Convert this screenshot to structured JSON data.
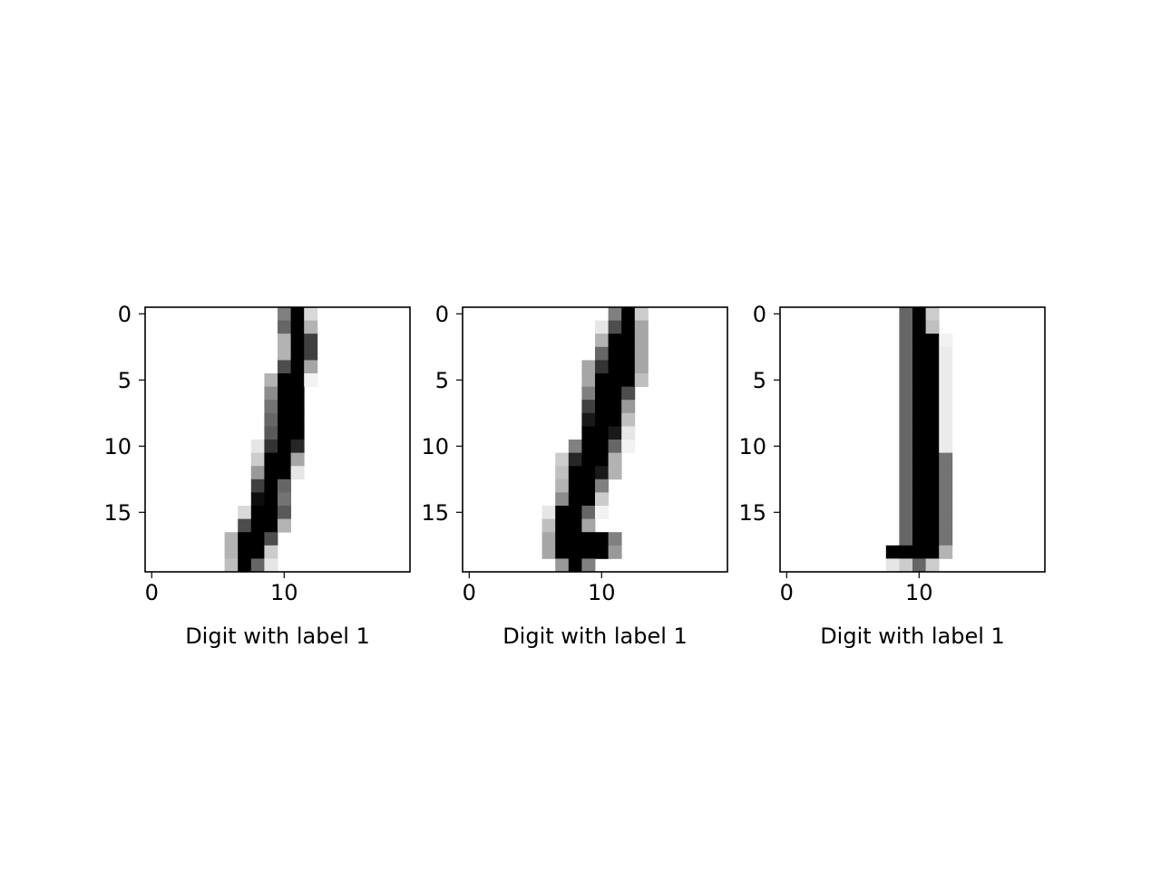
{
  "chart_data": [
    {
      "type": "heatmap",
      "colormap": "gray_r",
      "xlabel": "Digit with label 1",
      "xticks": [
        0,
        10
      ],
      "yticks": [
        0,
        5,
        10,
        15
      ],
      "xlim": [
        -0.5,
        19.5
      ],
      "ylim": [
        19.5,
        -0.5
      ],
      "grid": false,
      "cells": [
        [
          0,
          10,
          0.5
        ],
        [
          0,
          11,
          1.0
        ],
        [
          0,
          12,
          0.15
        ],
        [
          1,
          10,
          0.6
        ],
        [
          1,
          11,
          1.0
        ],
        [
          1,
          12,
          0.3
        ],
        [
          2,
          10,
          0.3
        ],
        [
          2,
          11,
          1.0
        ],
        [
          2,
          12,
          0.75
        ],
        [
          3,
          10,
          0.3
        ],
        [
          3,
          11,
          1.0
        ],
        [
          3,
          12,
          0.75
        ],
        [
          4,
          10,
          0.7
        ],
        [
          4,
          11,
          1.0
        ],
        [
          4,
          12,
          0.35
        ],
        [
          5,
          9,
          0.3
        ],
        [
          5,
          10,
          1.0
        ],
        [
          5,
          11,
          1.0
        ],
        [
          5,
          12,
          0.05
        ],
        [
          6,
          9,
          0.45
        ],
        [
          6,
          10,
          1.0
        ],
        [
          6,
          11,
          1.0
        ],
        [
          7,
          9,
          0.55
        ],
        [
          7,
          10,
          1.0
        ],
        [
          7,
          11,
          1.0
        ],
        [
          8,
          9,
          0.6
        ],
        [
          8,
          10,
          1.0
        ],
        [
          8,
          11,
          1.0
        ],
        [
          9,
          9,
          0.65
        ],
        [
          9,
          10,
          1.0
        ],
        [
          9,
          11,
          1.0
        ],
        [
          10,
          8,
          0.1
        ],
        [
          10,
          9,
          0.8
        ],
        [
          10,
          10,
          1.0
        ],
        [
          10,
          11,
          0.85
        ],
        [
          11,
          8,
          0.2
        ],
        [
          11,
          9,
          1.0
        ],
        [
          11,
          10,
          1.0
        ],
        [
          11,
          11,
          0.35
        ],
        [
          12,
          8,
          0.4
        ],
        [
          12,
          9,
          1.0
        ],
        [
          12,
          10,
          1.0
        ],
        [
          12,
          11,
          0.1
        ],
        [
          13,
          8,
          0.75
        ],
        [
          13,
          9,
          1.0
        ],
        [
          13,
          10,
          0.6
        ],
        [
          14,
          8,
          0.95
        ],
        [
          14,
          9,
          1.0
        ],
        [
          14,
          10,
          0.55
        ],
        [
          15,
          7,
          0.15
        ],
        [
          15,
          8,
          1.0
        ],
        [
          15,
          9,
          1.0
        ],
        [
          15,
          10,
          0.65
        ],
        [
          16,
          7,
          0.7
        ],
        [
          16,
          8,
          1.0
        ],
        [
          16,
          9,
          1.0
        ],
        [
          16,
          10,
          0.3
        ],
        [
          17,
          6,
          0.3
        ],
        [
          17,
          7,
          1.0
        ],
        [
          17,
          8,
          1.0
        ],
        [
          17,
          9,
          0.7
        ],
        [
          18,
          6,
          0.3
        ],
        [
          18,
          7,
          1.0
        ],
        [
          18,
          8,
          1.0
        ],
        [
          18,
          9,
          0.2
        ],
        [
          19,
          6,
          0.25
        ],
        [
          19,
          7,
          1.0
        ],
        [
          19,
          8,
          0.6
        ],
        [
          19,
          9,
          0.1
        ]
      ]
    },
    {
      "type": "heatmap",
      "colormap": "gray_r",
      "xlabel": "Digit with label 1",
      "xticks": [
        0,
        10
      ],
      "yticks": [
        0,
        5,
        10,
        15
      ],
      "xlim": [
        -0.5,
        19.5
      ],
      "ylim": [
        19.5,
        -0.5
      ],
      "grid": false,
      "cells": [
        [
          0,
          11,
          0.5
        ],
        [
          0,
          12,
          1.0
        ],
        [
          0,
          13,
          0.2
        ],
        [
          1,
          10,
          0.1
        ],
        [
          1,
          11,
          0.7
        ],
        [
          1,
          12,
          1.0
        ],
        [
          1,
          13,
          0.35
        ],
        [
          2,
          10,
          0.3
        ],
        [
          2,
          11,
          1.0
        ],
        [
          2,
          12,
          1.0
        ],
        [
          2,
          13,
          0.35
        ],
        [
          3,
          10,
          0.6
        ],
        [
          3,
          11,
          1.0
        ],
        [
          3,
          12,
          1.0
        ],
        [
          3,
          13,
          0.35
        ],
        [
          4,
          9,
          0.35
        ],
        [
          4,
          10,
          0.8
        ],
        [
          4,
          11,
          1.0
        ],
        [
          4,
          12,
          1.0
        ],
        [
          4,
          13,
          0.35
        ],
        [
          5,
          9,
          0.35
        ],
        [
          5,
          10,
          1.0
        ],
        [
          5,
          11,
          1.0
        ],
        [
          5,
          12,
          1.0
        ],
        [
          5,
          13,
          0.25
        ],
        [
          6,
          9,
          0.5
        ],
        [
          6,
          10,
          1.0
        ],
        [
          6,
          11,
          1.0
        ],
        [
          6,
          12,
          0.7
        ],
        [
          7,
          9,
          0.75
        ],
        [
          7,
          10,
          1.0
        ],
        [
          7,
          11,
          1.0
        ],
        [
          7,
          12,
          0.4
        ],
        [
          8,
          9,
          0.9
        ],
        [
          8,
          10,
          1.0
        ],
        [
          8,
          11,
          1.0
        ],
        [
          8,
          12,
          0.25
        ],
        [
          9,
          9,
          1.0
        ],
        [
          9,
          10,
          1.0
        ],
        [
          9,
          11,
          0.9
        ],
        [
          9,
          12,
          0.1
        ],
        [
          10,
          8,
          0.5
        ],
        [
          10,
          9,
          1.0
        ],
        [
          10,
          10,
          1.0
        ],
        [
          10,
          11,
          0.6
        ],
        [
          10,
          12,
          0.05
        ],
        [
          11,
          7,
          0.2
        ],
        [
          11,
          8,
          0.85
        ],
        [
          11,
          9,
          1.0
        ],
        [
          11,
          10,
          1.0
        ],
        [
          11,
          11,
          0.3
        ],
        [
          12,
          7,
          0.25
        ],
        [
          12,
          8,
          1.0
        ],
        [
          12,
          9,
          1.0
        ],
        [
          12,
          10,
          0.9
        ],
        [
          12,
          11,
          0.3
        ],
        [
          13,
          7,
          0.3
        ],
        [
          13,
          8,
          1.0
        ],
        [
          13,
          9,
          1.0
        ],
        [
          13,
          10,
          0.5
        ],
        [
          14,
          7,
          0.45
        ],
        [
          14,
          8,
          1.0
        ],
        [
          14,
          9,
          1.0
        ],
        [
          14,
          10,
          0.2
        ],
        [
          15,
          6,
          0.1
        ],
        [
          15,
          7,
          1.0
        ],
        [
          15,
          8,
          1.0
        ],
        [
          15,
          9,
          0.6
        ],
        [
          15,
          10,
          0.05
        ],
        [
          16,
          6,
          0.25
        ],
        [
          16,
          7,
          1.0
        ],
        [
          16,
          8,
          1.0
        ],
        [
          16,
          9,
          0.35
        ],
        [
          17,
          6,
          0.35
        ],
        [
          17,
          7,
          1.0
        ],
        [
          17,
          8,
          1.0
        ],
        [
          17,
          9,
          1.0
        ],
        [
          17,
          10,
          1.0
        ],
        [
          17,
          11,
          0.5
        ],
        [
          18,
          6,
          0.35
        ],
        [
          18,
          7,
          1.0
        ],
        [
          18,
          8,
          1.0
        ],
        [
          18,
          9,
          1.0
        ],
        [
          18,
          10,
          1.0
        ],
        [
          18,
          11,
          0.4
        ],
        [
          19,
          7,
          0.4
        ],
        [
          19,
          8,
          1.0
        ],
        [
          19,
          9,
          0.5
        ]
      ]
    },
    {
      "type": "heatmap",
      "colormap": "gray_r",
      "xlabel": "Digit with label 1",
      "xticks": [
        0,
        10
      ],
      "yticks": [
        0,
        5,
        10,
        15
      ],
      "xlim": [
        -0.5,
        19.5
      ],
      "ylim": [
        19.5,
        -0.5
      ],
      "grid": false,
      "cells": [
        [
          0,
          9,
          0.6
        ],
        [
          0,
          10,
          1.0
        ],
        [
          0,
          11,
          0.2
        ],
        [
          1,
          9,
          0.6
        ],
        [
          1,
          10,
          1.0
        ],
        [
          1,
          11,
          0.25
        ],
        [
          2,
          9,
          0.6
        ],
        [
          2,
          10,
          1.0
        ],
        [
          2,
          11,
          1.0
        ],
        [
          2,
          12,
          0.05
        ],
        [
          3,
          9,
          0.6
        ],
        [
          3,
          10,
          1.0
        ],
        [
          3,
          11,
          1.0
        ],
        [
          3,
          12,
          0.08
        ],
        [
          4,
          9,
          0.6
        ],
        [
          4,
          10,
          1.0
        ],
        [
          4,
          11,
          1.0
        ],
        [
          4,
          12,
          0.08
        ],
        [
          5,
          9,
          0.6
        ],
        [
          5,
          10,
          1.0
        ],
        [
          5,
          11,
          1.0
        ],
        [
          5,
          12,
          0.08
        ],
        [
          6,
          9,
          0.6
        ],
        [
          6,
          10,
          1.0
        ],
        [
          6,
          11,
          1.0
        ],
        [
          6,
          12,
          0.08
        ],
        [
          7,
          9,
          0.6
        ],
        [
          7,
          10,
          1.0
        ],
        [
          7,
          11,
          1.0
        ],
        [
          7,
          12,
          0.08
        ],
        [
          8,
          9,
          0.6
        ],
        [
          8,
          10,
          1.0
        ],
        [
          8,
          11,
          1.0
        ],
        [
          8,
          12,
          0.08
        ],
        [
          9,
          9,
          0.6
        ],
        [
          9,
          10,
          1.0
        ],
        [
          9,
          11,
          1.0
        ],
        [
          9,
          12,
          0.08
        ],
        [
          10,
          9,
          0.6
        ],
        [
          10,
          10,
          1.0
        ],
        [
          10,
          11,
          1.0
        ],
        [
          10,
          12,
          0.08
        ],
        [
          11,
          9,
          0.6
        ],
        [
          11,
          10,
          1.0
        ],
        [
          11,
          11,
          1.0
        ],
        [
          11,
          12,
          0.55
        ],
        [
          12,
          9,
          0.6
        ],
        [
          12,
          10,
          1.0
        ],
        [
          12,
          11,
          1.0
        ],
        [
          12,
          12,
          0.55
        ],
        [
          13,
          9,
          0.6
        ],
        [
          13,
          10,
          1.0
        ],
        [
          13,
          11,
          1.0
        ],
        [
          13,
          12,
          0.55
        ],
        [
          14,
          9,
          0.6
        ],
        [
          14,
          10,
          1.0
        ],
        [
          14,
          11,
          1.0
        ],
        [
          14,
          12,
          0.55
        ],
        [
          15,
          9,
          0.6
        ],
        [
          15,
          10,
          1.0
        ],
        [
          15,
          11,
          1.0
        ],
        [
          15,
          12,
          0.55
        ],
        [
          16,
          9,
          0.6
        ],
        [
          16,
          10,
          1.0
        ],
        [
          16,
          11,
          1.0
        ],
        [
          16,
          12,
          0.55
        ],
        [
          17,
          9,
          0.6
        ],
        [
          17,
          10,
          1.0
        ],
        [
          17,
          11,
          1.0
        ],
        [
          17,
          12,
          0.55
        ],
        [
          18,
          8,
          1.0
        ],
        [
          18,
          9,
          1.0
        ],
        [
          18,
          10,
          1.0
        ],
        [
          18,
          11,
          1.0
        ],
        [
          18,
          12,
          0.3
        ],
        [
          19,
          8,
          0.1
        ],
        [
          19,
          9,
          0.2
        ],
        [
          19,
          10,
          0.6
        ],
        [
          19,
          11,
          0.2
        ]
      ]
    }
  ]
}
